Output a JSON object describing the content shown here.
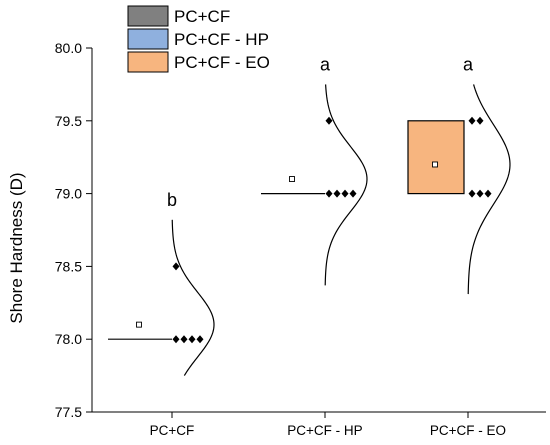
{
  "chart_data": {
    "type": "box",
    "xlabel": "",
    "ylabel": "Shore Hardness (D)",
    "ylim": [
      77.5,
      80.0
    ],
    "yticks": [
      "77.5",
      "78.0",
      "78.5",
      "79.0",
      "79.5",
      "80.0"
    ],
    "ytick_values": [
      77.5,
      78.0,
      78.5,
      79.0,
      79.5,
      80.0
    ],
    "grid": false,
    "legend_position": "top-left",
    "categories": [
      "PC+CF",
      "PC+CF - HP",
      "PC+CF - EO"
    ],
    "legend": [
      {
        "name": "PC+CF",
        "color": "#808080"
      },
      {
        "name": "PC+CF - HP",
        "color": "#8fb0de"
      },
      {
        "name": "PC+CF - EO",
        "color": "#f7b57f"
      }
    ],
    "groups": [
      {
        "name": "PC+CF",
        "letter": "b",
        "color": "#808080",
        "q1": 78.0,
        "median": 78.0,
        "q3": 78.0,
        "mean": 78.1,
        "points": [
          78.5,
          78.0,
          78.0,
          78.0,
          78.0
        ],
        "curve_range": [
          77.75,
          78.82
        ]
      },
      {
        "name": "PC+CF - HP",
        "letter": "a",
        "color": "#8fb0de",
        "q1": 79.0,
        "median": 79.0,
        "q3": 79.0,
        "mean": 79.1,
        "points": [
          79.5,
          79.0,
          79.0,
          79.0,
          79.0
        ],
        "curve_range": [
          78.37,
          79.75
        ]
      },
      {
        "name": "PC+CF - EO",
        "letter": "a",
        "color": "#f7b57f",
        "q1": 79.0,
        "median": 79.0,
        "q3": 79.5,
        "mean": 79.2,
        "points": [
          79.5,
          79.5,
          79.0,
          79.0,
          79.0
        ],
        "curve_range": [
          78.31,
          79.75
        ]
      }
    ]
  }
}
